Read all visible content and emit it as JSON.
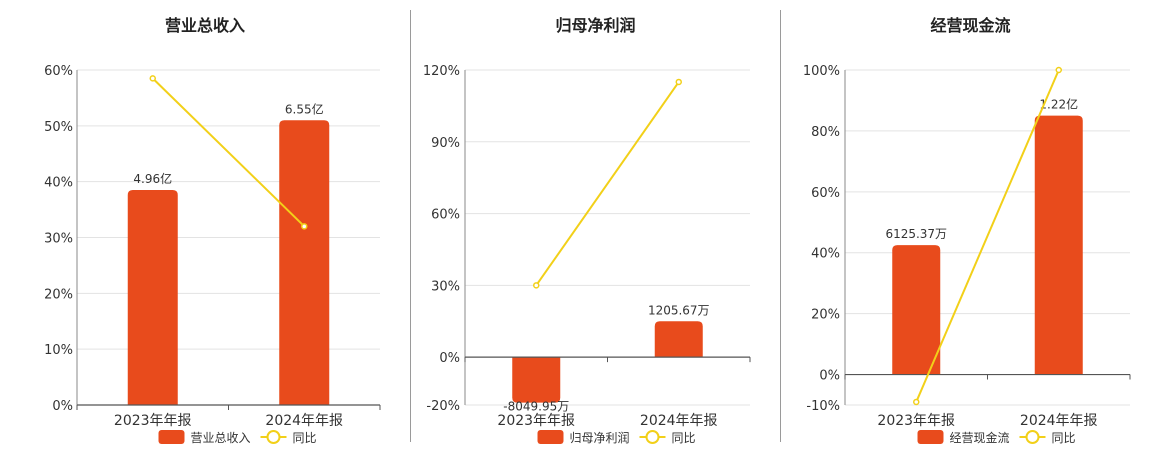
{
  "chart_data": [
    {
      "type": "bar",
      "title": "营业总收入",
      "categories": [
        "2023年年报",
        "2024年年报"
      ],
      "series": [
        {
          "name": "营业总收入",
          "kind": "bar",
          "values": [
            38.5,
            51.0
          ],
          "labels": [
            "4.96亿",
            "6.55亿"
          ],
          "color": "#e84b1c"
        },
        {
          "name": "同比",
          "kind": "line",
          "values": [
            58.5,
            32.0
          ],
          "color": "#f2d019"
        }
      ],
      "yticks": [
        "60%",
        "50%",
        "40%",
        "30%",
        "20%",
        "10%",
        "0%"
      ],
      "ylim": [
        0,
        60
      ],
      "grid": true,
      "legend": "bottom"
    },
    {
      "type": "bar",
      "title": "归母净利润",
      "categories": [
        "2023年年报",
        "2024年年报"
      ],
      "series": [
        {
          "name": "归母净利润",
          "kind": "bar",
          "values": [
            -19.0,
            15.0
          ],
          "labels": [
            "-8049.95万",
            "1205.67万"
          ],
          "color": "#e84b1c"
        },
        {
          "name": "同比",
          "kind": "line",
          "values": [
            30.0,
            115.0
          ],
          "color": "#f2d019"
        }
      ],
      "yticks": [
        "120%",
        "90%",
        "60%",
        "30%",
        "0%",
        "-20%"
      ],
      "ylim": [
        -20,
        120
      ],
      "grid": true,
      "legend": "bottom"
    },
    {
      "type": "bar",
      "title": "经营现金流",
      "categories": [
        "2023年年报",
        "2024年年报"
      ],
      "series": [
        {
          "name": "经营现金流",
          "kind": "bar",
          "values": [
            42.5,
            85.0
          ],
          "labels": [
            "6125.37万",
            "1.22亿"
          ],
          "color": "#e84b1c"
        },
        {
          "name": "同比",
          "kind": "line",
          "values": [
            -9.0,
            100.0
          ],
          "color": "#f2d019"
        }
      ],
      "yticks": [
        "100%",
        "80%",
        "60%",
        "40%",
        "20%",
        "0%",
        "-10%"
      ],
      "ylim": [
        -10,
        100
      ],
      "grid": true,
      "legend": "bottom"
    }
  ]
}
